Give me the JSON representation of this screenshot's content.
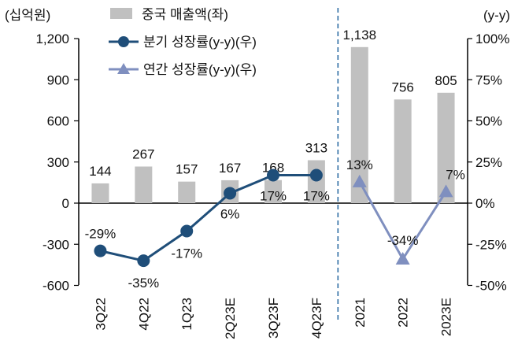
{
  "chart_data": {
    "type": "bar",
    "categories": [
      "3Q22",
      "4Q22",
      "1Q23",
      "2Q23E",
      "3Q23F",
      "4Q23F",
      "2021",
      "2022",
      "2023E"
    ],
    "left_axis": {
      "unit_label": "(십억원)",
      "range": [
        -600,
        1200
      ],
      "ticks": [
        "1,200",
        "900",
        "600",
        "300",
        "0",
        "-300",
        "-600"
      ],
      "tick_values": [
        1200,
        900,
        600,
        300,
        0,
        -300,
        -600
      ]
    },
    "right_axis": {
      "unit_label": "(y-y)",
      "range": [
        -50,
        100
      ],
      "ticks": [
        "100%",
        "75%",
        "50%",
        "25%",
        "0%",
        "-25%",
        "-50%"
      ],
      "tick_values": [
        100,
        75,
        50,
        25,
        0,
        -25,
        -50
      ]
    },
    "series": [
      {
        "name": "중국 매출액(좌)",
        "kind": "bar",
        "axis": "left",
        "color": "#c0c0c0",
        "values": [
          144,
          267,
          157,
          167,
          168,
          313,
          1138,
          756,
          805
        ],
        "labels": [
          "144",
          "267",
          "157",
          "167",
          "168",
          "313",
          "1,138",
          "756",
          "805"
        ]
      },
      {
        "name": "분기 성장률(y-y)(우)",
        "kind": "line",
        "axis": "right",
        "color": "#1f4e79",
        "marker": "circle",
        "values": [
          -29,
          -35,
          -17,
          6,
          17,
          17,
          null,
          null,
          null
        ],
        "labels": [
          "-29%",
          "-35%",
          "-17%",
          "6%",
          "17%",
          "17%",
          null,
          null,
          null
        ]
      },
      {
        "name": "연간 성장률(y-y)(우)",
        "kind": "line",
        "axis": "right",
        "color": "#7f8fbf",
        "marker": "triangle",
        "values": [
          null,
          null,
          null,
          null,
          null,
          null,
          13,
          -34,
          7
        ],
        "labels": [
          null,
          null,
          null,
          null,
          null,
          null,
          "13%",
          "-34%",
          "7%"
        ]
      }
    ],
    "divider_after_category": "4Q23F",
    "legend_position": "top-left"
  }
}
